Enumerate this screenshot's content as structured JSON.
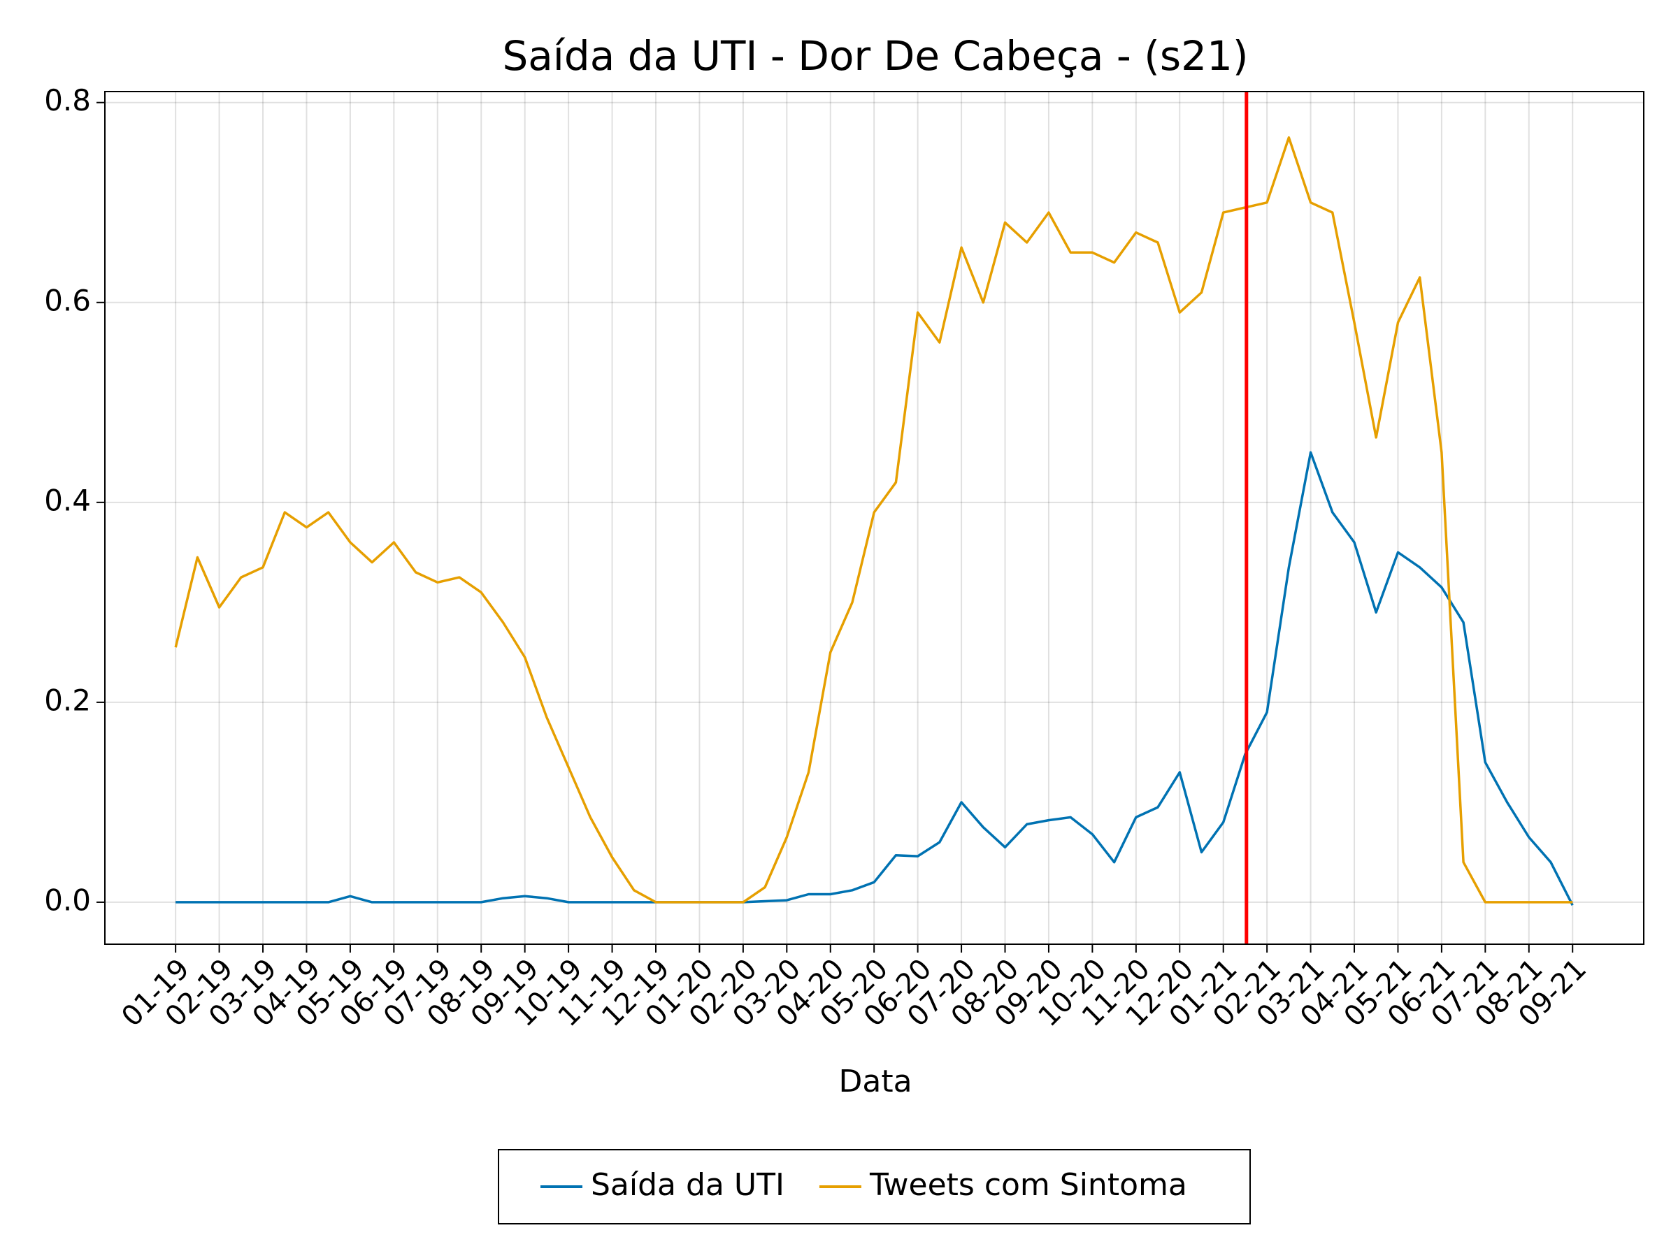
{
  "chart_data": {
    "type": "line",
    "title": "Saída da UTI - Dor De Cabeça - (s21)",
    "x_label": "Data",
    "x": [
      0,
      0.5,
      1,
      1.5,
      2,
      2.5,
      3,
      3.5,
      4,
      4.5,
      5,
      5.5,
      6,
      6.5,
      7,
      7.5,
      8,
      8.5,
      9,
      9.5,
      10,
      10.5,
      11,
      11.5,
      12,
      12.5,
      13,
      13.5,
      14,
      14.5,
      15,
      15.5,
      16,
      16.5,
      17,
      17.5,
      18,
      18.5,
      19,
      19.5,
      20,
      20.5,
      21,
      21.5,
      22,
      22.5,
      23,
      23.5,
      24,
      24.5,
      25,
      25.5,
      26,
      26.5,
      27,
      27.5,
      28,
      28.5,
      29,
      29.5,
      30,
      30.5,
      31,
      31.5,
      32
    ],
    "series": [
      {
        "name": "Saída da UTI",
        "color": "#0072b2",
        "values": [
          0,
          0,
          0,
          0,
          0,
          0,
          0,
          0,
          0.006,
          0,
          0,
          0,
          0,
          0,
          0,
          0.004,
          0.006,
          0.004,
          0,
          0,
          0,
          0,
          0,
          0,
          0,
          0,
          0,
          0.001,
          0.002,
          0.008,
          0.008,
          0.012,
          0.02,
          0.047,
          0.046,
          0.06,
          0.1,
          0.075,
          0.055,
          0.078,
          0.082,
          0.085,
          0.068,
          0.04,
          0.085,
          0.095,
          0.13,
          0.05,
          0.08,
          0.148,
          0.19,
          0.335,
          0.45,
          0.39,
          0.36,
          0.29,
          0.35,
          0.335,
          0.315,
          0.28,
          0.14,
          0.1,
          0.065,
          0.04,
          -0.003
        ]
      },
      {
        "name": "Tweets com Sintoma",
        "color": "#e69f00",
        "values": [
          0.255,
          0.345,
          0.295,
          0.325,
          0.335,
          0.39,
          0.375,
          0.39,
          0.36,
          0.34,
          0.36,
          0.33,
          0.32,
          0.325,
          0.31,
          0.28,
          0.245,
          0.185,
          0.135,
          0.085,
          0.045,
          0.012,
          0,
          0,
          0,
          0,
          0,
          0.015,
          0.065,
          0.13,
          0.25,
          0.3,
          0.39,
          0.42,
          0.59,
          0.56,
          0.655,
          0.6,
          0.68,
          0.66,
          0.69,
          0.65,
          0.65,
          0.64,
          0.67,
          0.66,
          0.59,
          0.61,
          0.69,
          0.695,
          0.7,
          0.765,
          0.7,
          0.69,
          0.58,
          0.465,
          0.58,
          0.625,
          0.45,
          0.04,
          0,
          0,
          0,
          0,
          0
        ]
      }
    ],
    "vline": {
      "x": 24.53,
      "color": "#ff0000"
    },
    "xlim": [
      -1.62,
      33.63
    ],
    "ylim": [
      -0.042,
      0.811
    ],
    "xticks": [
      {
        "value": 0,
        "label": "01-19"
      },
      {
        "value": 1,
        "label": "02-19"
      },
      {
        "value": 2,
        "label": "03-19"
      },
      {
        "value": 3,
        "label": "04-19"
      },
      {
        "value": 4,
        "label": "05-19"
      },
      {
        "value": 5,
        "label": "06-19"
      },
      {
        "value": 6,
        "label": "07-19"
      },
      {
        "value": 7,
        "label": "08-19"
      },
      {
        "value": 8,
        "label": "09-19"
      },
      {
        "value": 9,
        "label": "10-19"
      },
      {
        "value": 10,
        "label": "11-19"
      },
      {
        "value": 11,
        "label": "12-19"
      },
      {
        "value": 12,
        "label": "01-20"
      },
      {
        "value": 13,
        "label": "02-20"
      },
      {
        "value": 14,
        "label": "03-20"
      },
      {
        "value": 15,
        "label": "04-20"
      },
      {
        "value": 16,
        "label": "05-20"
      },
      {
        "value": 17,
        "label": "06-20"
      },
      {
        "value": 18,
        "label": "07-20"
      },
      {
        "value": 19,
        "label": "08-20"
      },
      {
        "value": 20,
        "label": "09-20"
      },
      {
        "value": 21,
        "label": "10-20"
      },
      {
        "value": 22,
        "label": "11-20"
      },
      {
        "value": 23,
        "label": "12-20"
      },
      {
        "value": 24,
        "label": "01-21"
      },
      {
        "value": 25,
        "label": "02-21"
      },
      {
        "value": 26,
        "label": "03-21"
      },
      {
        "value": 27,
        "label": "04-21"
      },
      {
        "value": 28,
        "label": "05-21"
      },
      {
        "value": 29,
        "label": "06-21"
      },
      {
        "value": 30,
        "label": "07-21"
      },
      {
        "value": 31,
        "label": "08-21"
      },
      {
        "value": 32,
        "label": "09-21"
      }
    ],
    "yticks": [
      {
        "value": 0,
        "label": "0.0"
      },
      0.2,
      0.4,
      0.6,
      0.8
    ],
    "grid": true,
    "legend": "bottom"
  }
}
